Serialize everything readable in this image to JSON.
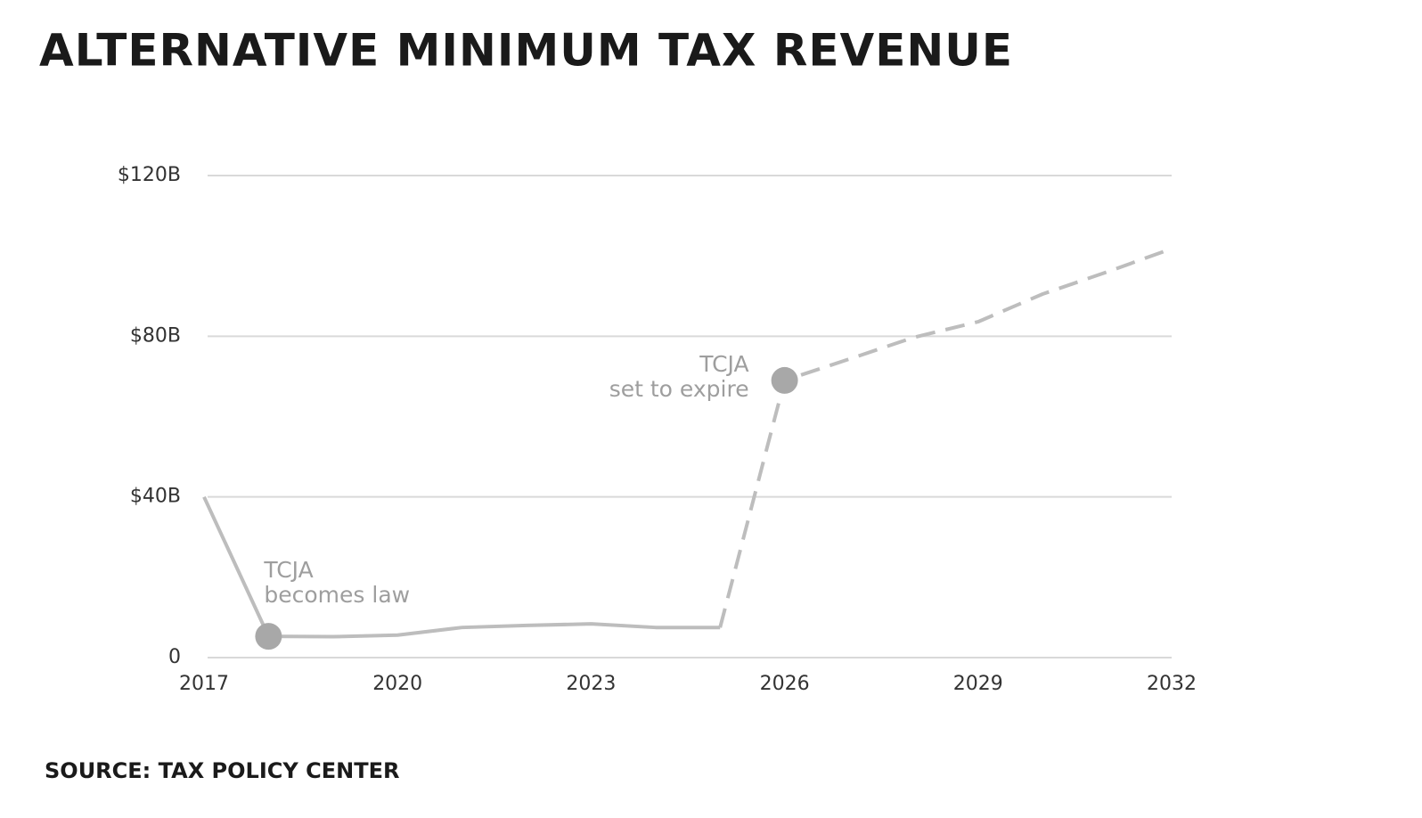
{
  "chart_data": {
    "type": "line",
    "title": "ALTERNATIVE MINIMUM TAX REVENUE",
    "source": "SOURCE: TAX POLICY CENTER",
    "x": [
      2017,
      2018,
      2019,
      2020,
      2021,
      2022,
      2023,
      2024,
      2025,
      2026,
      2027,
      2028,
      2029,
      2030,
      2031,
      2032
    ],
    "series": [
      {
        "color": "#bdbdbd",
        "style": "solid",
        "values": [
          40,
          5.3,
          5.2,
          5.6,
          7.5,
          8,
          8.4,
          7.5,
          7.5,
          null,
          null,
          null,
          null,
          null,
          null,
          null
        ]
      },
      {
        "color": "#bdbdbd",
        "style": "dashed",
        "values": [
          null,
          null,
          null,
          null,
          null,
          null,
          null,
          null,
          7.5,
          69,
          74.3,
          79.7,
          83.6,
          90.5,
          96,
          101.8
        ]
      }
    ],
    "annotations": [
      {
        "x": 2018,
        "text": [
          "TCJA",
          "becomes law"
        ],
        "align": "right"
      },
      {
        "x": 2026,
        "text": [
          "TCJA",
          "set to expire"
        ],
        "align": "left"
      }
    ],
    "xlim": [
      2017,
      2032
    ],
    "xticks": [
      2017,
      2020,
      2023,
      2026,
      2029,
      2032
    ],
    "ylim": [
      0,
      120
    ],
    "yticks": [
      0,
      {
        "value": 40,
        "label": "$40B"
      },
      {
        "value": 80,
        "label": "$80B"
      },
      {
        "value": 120,
        "label": "$120B"
      }
    ],
    "grid": true
  }
}
